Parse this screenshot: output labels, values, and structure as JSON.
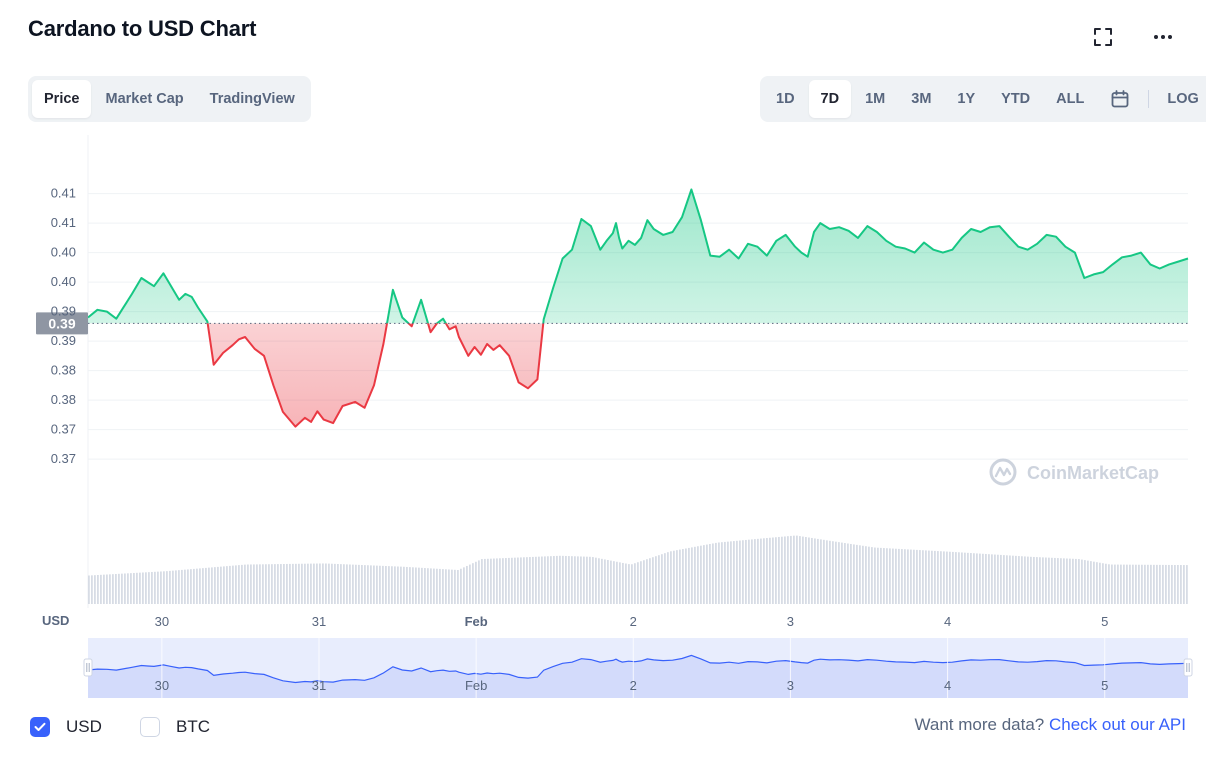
{
  "title": "Cardano to USD Chart",
  "icons": {
    "fullscreen": "fullscreen-icon",
    "more": "more-horizontal-icon",
    "calendar": "calendar-icon",
    "logo": "coinmarketcap-logo-icon"
  },
  "tabs": [
    {
      "label": "Price",
      "active": true
    },
    {
      "label": "Market Cap",
      "active": false
    },
    {
      "label": "TradingView",
      "active": false
    }
  ],
  "ranges": [
    {
      "label": "1D",
      "active": false
    },
    {
      "label": "7D",
      "active": true
    },
    {
      "label": "1M",
      "active": false
    },
    {
      "label": "3M",
      "active": false
    },
    {
      "label": "1Y",
      "active": false
    },
    {
      "label": "YTD",
      "active": false
    },
    {
      "label": "ALL",
      "active": false
    }
  ],
  "log_label": "LOG",
  "watermark": "CoinMarketCap",
  "colors": {
    "up": "#16c784",
    "down": "#ea3943",
    "navigator": "#3861fb",
    "accent": "#3861fb",
    "volume": "#cfd6e4"
  },
  "chart_data": {
    "type": "line",
    "ylabel": "USD",
    "y_tick_labels": [
      "0.41",
      "0.41",
      "0.40",
      "0.40",
      "0.39",
      "0.39",
      "0.38",
      "0.38",
      "0.37",
      "0.37"
    ],
    "y_tick_values": [
      0.4105,
      0.4055,
      0.4005,
      0.3955,
      0.3905,
      0.3855,
      0.3805,
      0.3755,
      0.3705,
      0.3655
    ],
    "ylim": [
      0.3628,
      0.4162
    ],
    "x_tick_labels": [
      "30",
      "31",
      "Feb",
      "2",
      "3",
      "4",
      "5"
    ],
    "x_tick_values": [
      0.47,
      1.47,
      2.47,
      3.47,
      4.47,
      5.47,
      6.47
    ],
    "xlim": [
      0,
      7
    ],
    "baseline": 0.3885,
    "baseline_label": "0.39",
    "series": [
      {
        "x": [
          0,
          0.06,
          0.12,
          0.18,
          0.22,
          0.28,
          0.34,
          0.38,
          0.42,
          0.48,
          0.52,
          0.58,
          0.62,
          0.66,
          0.7,
          0.76,
          0.8,
          0.86,
          0.92,
          0.96,
          1.0,
          1.06,
          1.12,
          1.18,
          1.24,
          1.32,
          1.38,
          1.42,
          1.46,
          1.5,
          1.56,
          1.62,
          1.7,
          1.76,
          1.82,
          1.88,
          1.94,
          2.0,
          2.06,
          2.12,
          2.18,
          2.22,
          2.26,
          2.3,
          2.34,
          2.36,
          2.42,
          2.46,
          2.5,
          2.54,
          2.58,
          2.62,
          2.68,
          2.74,
          2.8,
          2.86,
          2.9,
          2.96,
          3.02,
          3.08,
          3.14,
          3.2,
          3.26,
          3.3,
          3.34,
          3.36,
          3.38,
          3.4,
          3.44,
          3.48,
          3.52,
          3.56,
          3.6,
          3.66,
          3.72,
          3.78,
          3.84,
          3.9,
          3.96,
          4.02,
          4.08,
          4.14,
          4.2,
          4.26,
          4.32,
          4.38,
          4.44,
          4.5,
          4.54,
          4.58,
          4.62,
          4.66,
          4.72,
          4.78,
          4.84,
          4.9,
          4.96,
          5.02,
          5.08,
          5.14,
          5.2,
          5.26,
          5.32,
          5.38,
          5.44,
          5.5,
          5.56,
          5.62,
          5.68,
          5.74,
          5.8,
          5.86,
          5.92,
          5.98,
          6.04,
          6.1,
          6.16,
          6.22,
          6.28,
          6.34,
          6.4,
          6.46,
          6.52,
          6.58,
          6.64,
          6.7,
          6.76,
          6.82,
          6.88,
          6.94,
          7.0
        ],
        "y": [
          0.3895,
          0.3908,
          0.3905,
          0.3893,
          0.391,
          0.3935,
          0.3962,
          0.3955,
          0.3948,
          0.397,
          0.3952,
          0.3925,
          0.3935,
          0.393,
          0.3912,
          0.3888,
          0.3815,
          0.3835,
          0.3848,
          0.3858,
          0.3862,
          0.3842,
          0.383,
          0.378,
          0.3735,
          0.371,
          0.3725,
          0.3718,
          0.3736,
          0.3722,
          0.3716,
          0.3745,
          0.3752,
          0.3742,
          0.378,
          0.385,
          0.3942,
          0.3895,
          0.388,
          0.3925,
          0.387,
          0.3885,
          0.3893,
          0.3875,
          0.388,
          0.3862,
          0.383,
          0.3845,
          0.3832,
          0.385,
          0.384,
          0.3848,
          0.383,
          0.3785,
          0.3775,
          0.379,
          0.3892,
          0.3945,
          0.3995,
          0.401,
          0.4062,
          0.405,
          0.401,
          0.4025,
          0.4038,
          0.4055,
          0.403,
          0.4012,
          0.4025,
          0.4018,
          0.403,
          0.406,
          0.4045,
          0.4035,
          0.404,
          0.4065,
          0.4112,
          0.406,
          0.4,
          0.3998,
          0.401,
          0.3995,
          0.402,
          0.4015,
          0.4,
          0.4025,
          0.4035,
          0.4015,
          0.4005,
          0.3998,
          0.404,
          0.4055,
          0.4045,
          0.4048,
          0.4042,
          0.403,
          0.405,
          0.404,
          0.4025,
          0.4015,
          0.4012,
          0.4005,
          0.4022,
          0.401,
          0.4005,
          0.401,
          0.403,
          0.4045,
          0.404,
          0.4048,
          0.405,
          0.4032,
          0.4015,
          0.401,
          0.402,
          0.4035,
          0.4032,
          0.4015,
          0.4005,
          0.3962,
          0.3968,
          0.3972,
          0.3985,
          0.3997,
          0.4,
          0.4005,
          0.3985,
          0.3978,
          0.3985,
          0.399,
          0.3995
        ]
      }
    ],
    "volume": {
      "x": [
        0,
        0.5,
        1.0,
        1.5,
        2.0,
        2.35,
        2.5,
        3.0,
        3.2,
        3.45,
        3.7,
        4.0,
        4.3,
        4.5,
        4.7,
        5.0,
        5.5,
        6.0,
        6.3,
        6.5,
        7.0
      ],
      "values": [
        0.52,
        0.6,
        0.72,
        0.74,
        0.68,
        0.62,
        0.82,
        0.88,
        0.86,
        0.72,
        0.96,
        1.12,
        1.2,
        1.25,
        1.16,
        1.03,
        0.95,
        0.86,
        0.82,
        0.72,
        0.71
      ]
    }
  }
}
